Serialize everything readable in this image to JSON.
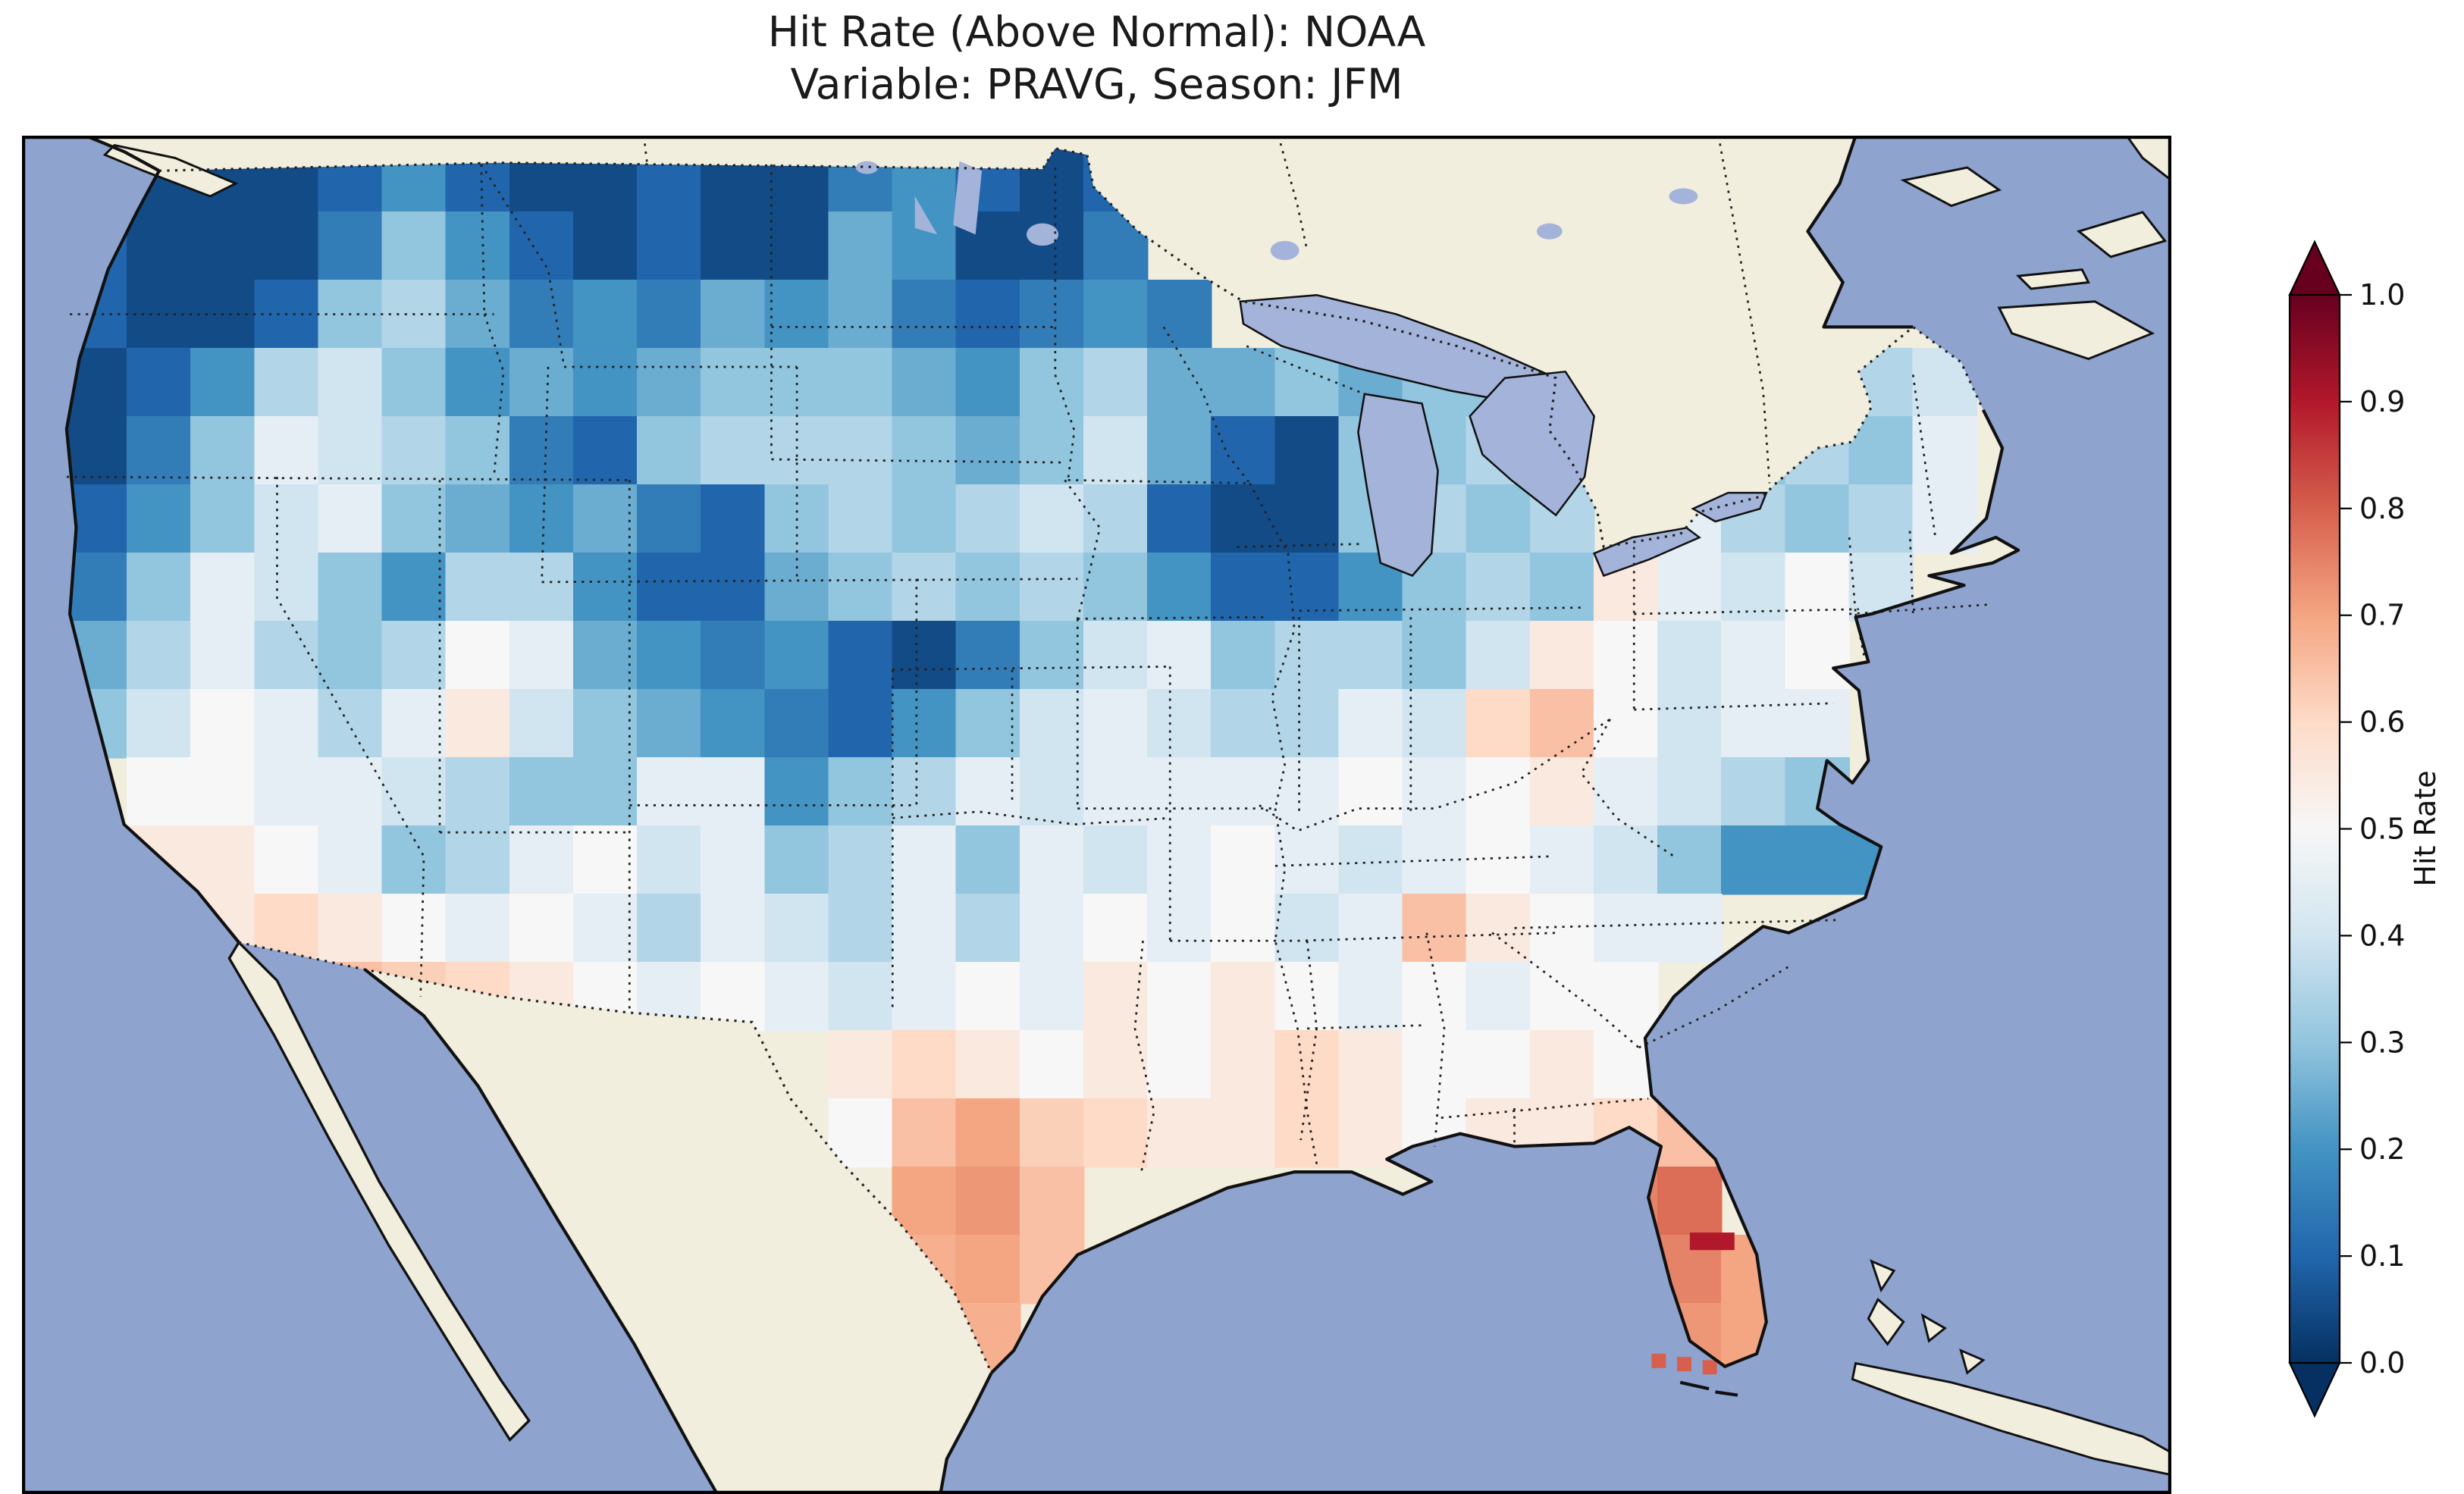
{
  "title": {
    "line1": "Hit Rate (Above Normal): NOAA",
    "line2": "Variable: PRAVG, Season: JFM"
  },
  "colorbar": {
    "label": "Hit Rate",
    "ticks": [
      "1.0",
      "0.9",
      "0.8",
      "0.7",
      "0.6",
      "0.5",
      "0.4",
      "0.3",
      "0.2",
      "0.1",
      "0.0"
    ],
    "extend": "both",
    "stops": [
      "#053061",
      "#2166ac",
      "#4393c3",
      "#92c5de",
      "#d1e5f0",
      "#f7f7f7",
      "#fddbc7",
      "#f4a582",
      "#d6604d",
      "#b2182b",
      "#67001f"
    ]
  },
  "map_colors": {
    "ocean": "#8fa3cf",
    "land": "#f1eedd",
    "lake": "#a3b3da",
    "coast": "#111111",
    "border": "#222222",
    "dark_red_mark": "#b2182b",
    "keys_mark": "#d6604d"
  },
  "chart_data": {
    "type": "heatmap",
    "title": "Hit Rate (Above Normal): NOAA",
    "subtitle": "Variable: PRAVG, Season: JFM",
    "value_label": "Hit Rate",
    "colormap": "RdBu_r",
    "value_range": [
      0,
      1
    ],
    "region": "Contiguous United States",
    "legend_position": "right",
    "grid_cols": 30,
    "grid_rows": 18,
    "description": "Gridded hit-rate field over CONUS; low (blue) values over Pacific Northwest, Montana, North Dakota, Minnesota, Wisconsin and Colorado/Kansas; high (orange/red) values over south Texas, peninsular Florida, the Gulf Coast, Georgia and the West Virginia/Virginia Appalachians.",
    "values": [
      [
        null,
        0.05,
        0.05,
        0.05,
        0.1,
        0.2,
        0.1,
        0.05,
        0.05,
        0.1,
        0.05,
        0.05,
        0.15,
        0.2,
        0.1,
        0.05,
        0.1,
        null,
        null,
        null,
        null,
        null,
        null,
        null,
        null,
        null,
        null,
        null,
        null,
        null
      ],
      [
        0.1,
        0.05,
        0.05,
        0.05,
        0.15,
        0.3,
        0.2,
        0.1,
        0.05,
        0.1,
        0.05,
        0.05,
        0.25,
        0.2,
        0.05,
        0.05,
        0.15,
        null,
        null,
        null,
        null,
        null,
        null,
        null,
        null,
        null,
        null,
        null,
        null,
        null
      ],
      [
        0.1,
        0.05,
        0.05,
        0.1,
        0.3,
        0.35,
        0.25,
        0.15,
        0.2,
        0.15,
        0.25,
        0.2,
        0.25,
        0.15,
        0.1,
        0.15,
        0.2,
        0.15,
        null,
        null,
        null,
        null,
        null,
        null,
        null,
        null,
        null,
        null,
        null,
        null
      ],
      [
        0.05,
        0.1,
        0.2,
        0.35,
        0.4,
        0.3,
        0.2,
        0.25,
        0.2,
        0.25,
        0.3,
        0.3,
        0.3,
        0.25,
        0.2,
        0.3,
        0.35,
        0.25,
        0.25,
        0.3,
        0.25,
        0.3,
        0.3,
        null,
        null,
        null,
        null,
        null,
        0.35,
        0.4
      ],
      [
        0.05,
        0.15,
        0.3,
        0.45,
        0.4,
        0.35,
        0.3,
        0.15,
        0.1,
        0.3,
        0.35,
        0.35,
        0.35,
        0.3,
        0.25,
        0.3,
        0.4,
        0.25,
        0.1,
        0.05,
        0.3,
        0.3,
        0.35,
        null,
        null,
        null,
        0.3,
        0.35,
        0.3,
        0.45
      ],
      [
        0.1,
        0.2,
        0.3,
        0.4,
        0.45,
        0.3,
        0.25,
        0.2,
        0.25,
        0.15,
        0.1,
        0.3,
        0.35,
        0.3,
        0.35,
        0.4,
        0.35,
        0.1,
        0.05,
        0.05,
        0.3,
        0.35,
        0.3,
        0.35,
        null,
        0.45,
        0.35,
        0.3,
        0.35,
        0.45
      ],
      [
        0.15,
        0.3,
        0.45,
        0.4,
        0.3,
        0.2,
        0.35,
        0.35,
        0.2,
        0.1,
        0.1,
        0.25,
        0.3,
        0.35,
        0.3,
        0.35,
        0.3,
        0.2,
        0.1,
        0.1,
        0.2,
        0.3,
        0.35,
        0.3,
        0.55,
        0.45,
        0.4,
        0.5,
        0.4,
        null
      ],
      [
        0.25,
        0.35,
        0.45,
        0.35,
        0.3,
        0.35,
        0.5,
        0.45,
        0.25,
        0.2,
        0.15,
        0.2,
        0.1,
        0.05,
        0.15,
        0.3,
        0.4,
        0.45,
        0.3,
        0.35,
        0.35,
        0.3,
        0.4,
        0.55,
        0.5,
        0.4,
        0.45,
        0.5,
        null,
        null
      ],
      [
        0.3,
        0.4,
        0.5,
        0.45,
        0.35,
        0.45,
        0.55,
        0.4,
        0.3,
        0.25,
        0.2,
        0.15,
        0.1,
        0.2,
        0.3,
        0.4,
        0.45,
        0.4,
        0.35,
        0.35,
        0.45,
        0.4,
        0.6,
        0.65,
        0.5,
        0.4,
        0.45,
        0.45,
        null,
        null
      ],
      [
        null,
        0.5,
        0.5,
        0.45,
        0.45,
        0.4,
        0.35,
        0.3,
        0.3,
        0.45,
        0.45,
        0.2,
        0.3,
        0.35,
        0.45,
        0.4,
        0.45,
        0.45,
        0.45,
        0.45,
        0.5,
        0.45,
        0.5,
        0.55,
        0.45,
        0.4,
        0.35,
        0.3,
        null,
        null
      ],
      [
        null,
        0.55,
        0.55,
        0.5,
        0.45,
        0.3,
        0.35,
        0.45,
        0.5,
        0.4,
        0.45,
        0.3,
        0.35,
        0.45,
        0.3,
        0.45,
        0.4,
        0.45,
        0.5,
        0.45,
        0.4,
        0.45,
        0.5,
        0.45,
        0.4,
        0.3,
        0.2,
        0.2,
        0.2,
        null
      ],
      [
        null,
        null,
        0.55,
        0.6,
        0.55,
        0.5,
        0.45,
        0.5,
        0.45,
        0.35,
        0.45,
        0.4,
        0.35,
        0.45,
        0.35,
        0.45,
        0.5,
        0.45,
        0.5,
        0.4,
        0.45,
        0.65,
        0.55,
        0.5,
        0.45,
        0.45,
        null,
        null,
        null,
        null
      ],
      [
        null,
        null,
        null,
        0.62,
        0.65,
        0.62,
        0.6,
        0.55,
        0.5,
        0.45,
        0.5,
        0.45,
        0.4,
        0.45,
        0.5,
        0.45,
        0.55,
        0.5,
        0.55,
        0.5,
        0.45,
        0.5,
        0.45,
        0.5,
        0.5,
        null,
        null,
        null,
        null,
        null
      ],
      [
        null,
        null,
        null,
        null,
        null,
        null,
        null,
        null,
        null,
        null,
        null,
        null,
        0.55,
        0.6,
        0.55,
        0.5,
        0.55,
        0.5,
        0.55,
        0.6,
        0.55,
        0.5,
        0.5,
        0.55,
        0.5,
        null,
        null,
        null,
        null,
        null
      ],
      [
        null,
        null,
        null,
        null,
        null,
        null,
        null,
        null,
        null,
        null,
        null,
        null,
        0.5,
        0.65,
        0.7,
        0.62,
        0.6,
        0.55,
        0.55,
        0.6,
        0.55,
        0.5,
        0.55,
        0.55,
        0.6,
        0.65,
        null,
        null,
        null,
        null
      ],
      [
        null,
        null,
        null,
        null,
        null,
        null,
        null,
        null,
        null,
        null,
        null,
        null,
        null,
        0.7,
        0.72,
        0.65,
        null,
        null,
        null,
        null,
        null,
        null,
        null,
        null,
        0.75,
        0.78,
        null,
        null,
        null,
        null
      ],
      [
        null,
        null,
        null,
        null,
        null,
        null,
        null,
        null,
        null,
        null,
        null,
        null,
        null,
        0.68,
        0.7,
        0.65,
        null,
        null,
        null,
        null,
        null,
        null,
        null,
        null,
        0.72,
        0.75,
        0.7,
        null,
        null,
        null
      ],
      [
        null,
        null,
        null,
        null,
        null,
        null,
        null,
        null,
        null,
        null,
        null,
        null,
        null,
        null,
        0.68,
        null,
        null,
        null,
        null,
        null,
        null,
        null,
        null,
        null,
        0.7,
        0.72,
        0.7,
        null,
        null,
        null
      ]
    ]
  }
}
